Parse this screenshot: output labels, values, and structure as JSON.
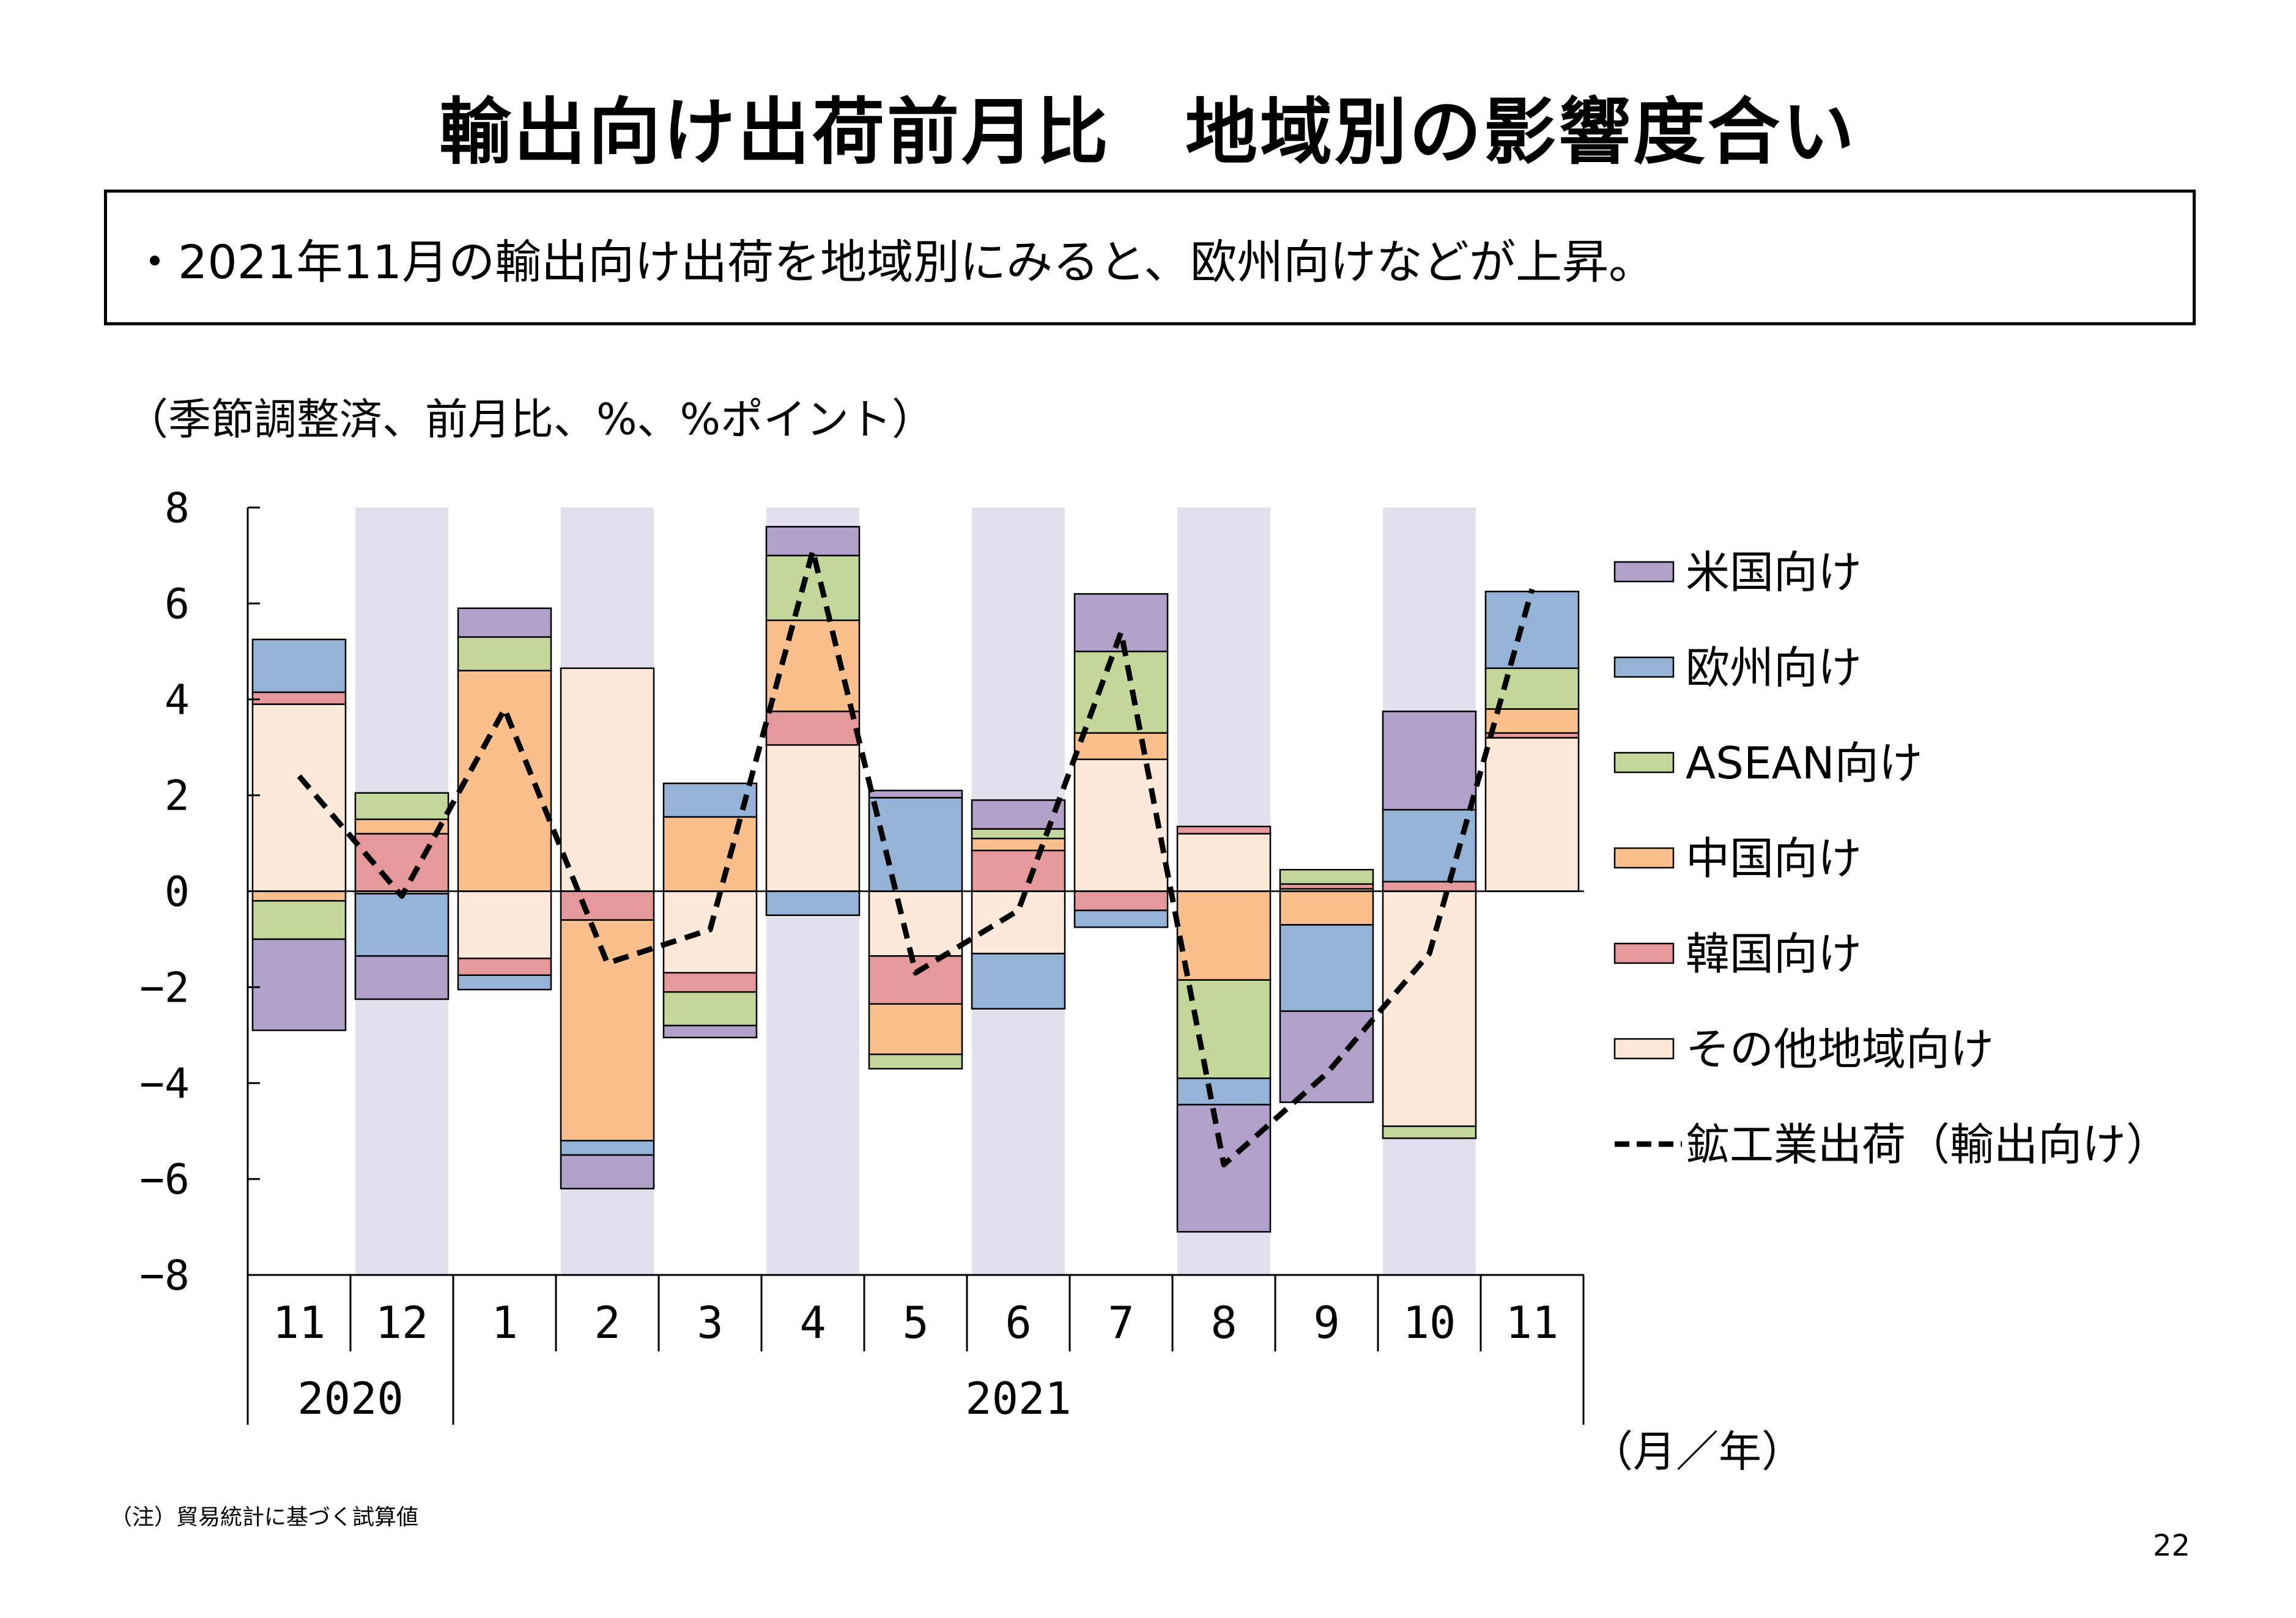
{
  "title": "輸出向け出荷前月比　地域別の影響度合い",
  "summary": "・2021年11月の輸出向け出荷を地域別にみると、欧州向けなどが上昇。",
  "unit_label": "（季節調整済、前月比、%、%ポイント）",
  "period_label": "（月／年）",
  "note": "（注）貿易統計に基づく試算値",
  "page_number": "22",
  "chart_data": {
    "type": "bar",
    "stacked": true,
    "categories": [
      "11",
      "12",
      "1",
      "2",
      "3",
      "4",
      "5",
      "6",
      "7",
      "8",
      "9",
      "10",
      "11"
    ],
    "year_groups": [
      {
        "label": "2020",
        "start": 0,
        "end": 1
      },
      {
        "label": "2021",
        "start": 2,
        "end": 12
      }
    ],
    "ylim": [
      -8,
      8
    ],
    "yticks": [
      8,
      6,
      4,
      2,
      0,
      -2,
      -4,
      -6,
      -8
    ],
    "ytick_labels": [
      "8",
      "6",
      "4",
      "2",
      "0",
      "−2",
      "−4",
      "−6",
      "−8"
    ],
    "shaded_categories": [
      1,
      3,
      5,
      7,
      9,
      11
    ],
    "shade_color": "#e4dfec",
    "series": [
      {
        "name": "その他地域向け",
        "color": "#fde9d9",
        "values": [
          3.9,
          -0.05,
          -1.4,
          4.65,
          -1.7,
          3.05,
          -1.35,
          -1.3,
          2.75,
          1.2,
          0.05,
          -4.9,
          3.2
        ]
      },
      {
        "name": "韓国向け",
        "color": "#e6999b",
        "values": [
          0.25,
          1.2,
          -0.35,
          -0.6,
          -0.4,
          0.7,
          -1.0,
          0.85,
          -0.4,
          0.15,
          0.1,
          0.2,
          0.1
        ]
      },
      {
        "name": "中国向け",
        "color": "#f9c08e",
        "values": [
          -0.2,
          0.3,
          4.6,
          -4.6,
          1.55,
          1.9,
          -1.05,
          0.25,
          0.55,
          -1.85,
          -0.7,
          0.0,
          0.5
        ]
      },
      {
        "name": "ASEAN向け",
        "color": "#c4d79b",
        "values": [
          -0.8,
          0.55,
          0.7,
          0.0,
          -0.7,
          1.35,
          -0.3,
          0.2,
          1.7,
          -2.05,
          0.3,
          -0.25,
          0.85
        ]
      },
      {
        "name": "欧州向け",
        "color": "#95b3d7",
        "values": [
          1.1,
          -1.3,
          -0.3,
          -0.3,
          0.7,
          -0.5,
          1.95,
          -1.15,
          -0.35,
          -0.55,
          -1.8,
          1.5,
          1.6
        ]
      },
      {
        "name": "米国向け",
        "color": "#b1a0c7",
        "values": [
          -1.9,
          -0.9,
          0.6,
          -0.7,
          -0.25,
          0.6,
          0.15,
          0.6,
          1.2,
          -2.65,
          -1.9,
          2.05,
          0.0
        ]
      }
    ],
    "line": {
      "name": "鉱工業出荷（輸出向け）",
      "color": "#000000",
      "values": [
        2.4,
        -0.1,
        3.8,
        -1.5,
        -0.8,
        7.1,
        -1.7,
        -0.4,
        5.4,
        -5.7,
        -3.8,
        -1.3,
        6.3
      ]
    },
    "legend": {
      "placement": "right",
      "order": [
        "米国向け",
        "欧州向け",
        "ASEAN向け",
        "中国向け",
        "韓国向け",
        "その他地域向け",
        "鉱工業出荷（輸出向け）"
      ]
    }
  }
}
